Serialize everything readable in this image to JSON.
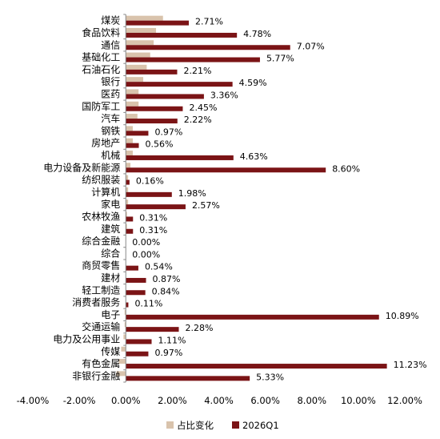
{
  "chart_data": {
    "type": "bar",
    "orientation": "horizontal",
    "categories": [
      "煤炭",
      "食品饮料",
      "通信",
      "基础化工",
      "石油石化",
      "银行",
      "医药",
      "国防军工",
      "汽车",
      "钢铁",
      "房地产",
      "机械",
      "电力设备及新能源",
      "纺织服装",
      "计算机",
      "家电",
      "农林牧渔",
      "建筑",
      "综合金融",
      "综合",
      "商贸零售",
      "建材",
      "轻工制造",
      "消费者服务",
      "电子",
      "交通运输",
      "电力及公用事业",
      "传媒",
      "有色金属",
      "非银行金融"
    ],
    "series": [
      {
        "name": "占比变化",
        "color": "#d9c3ac",
        "values": [
          1.6,
          1.3,
          1.2,
          1.05,
          0.9,
          0.75,
          0.55,
          0.55,
          0.5,
          0.3,
          0.3,
          0.3,
          0.2,
          0.1,
          0.1,
          0.1,
          0.05,
          0.05,
          0.0,
          0.0,
          0.0,
          0.0,
          0.0,
          0.0,
          -0.05,
          -0.05,
          -0.1,
          -0.2,
          -0.3,
          -0.4
        ]
      },
      {
        "name": "2026Q1",
        "color": "#7b1416",
        "values": [
          2.71,
          4.78,
          7.07,
          5.77,
          2.21,
          4.59,
          3.36,
          2.45,
          2.22,
          0.97,
          0.56,
          4.63,
          8.6,
          0.16,
          1.98,
          2.57,
          0.31,
          0.31,
          0.0,
          0.0,
          0.54,
          0.87,
          0.84,
          0.11,
          10.89,
          2.28,
          1.11,
          0.97,
          11.23,
          5.33
        ]
      }
    ],
    "data_labels": [
      "2.71%",
      "4.78%",
      "7.07%",
      "5.77%",
      "2.21%",
      "4.59%",
      "3.36%",
      "2.45%",
      "2.22%",
      "0.97%",
      "0.56%",
      "4.63%",
      "8.60%",
      "0.16%",
      "1.98%",
      "2.57%",
      "0.31%",
      "0.31%",
      "0.00%",
      "0.00%",
      "0.54%",
      "0.87%",
      "0.84%",
      "0.11%",
      "10.89%",
      "2.28%",
      "1.11%",
      "0.97%",
      "11.23%",
      "5.33%"
    ],
    "xlim": [
      -4,
      12
    ],
    "xticks": [
      "-4.00%",
      "-2.00%",
      "0.00%",
      "2.00%",
      "4.00%",
      "6.00%",
      "8.00%",
      "10.00%",
      "12.00%"
    ],
    "xtick_values": [
      -4,
      -2,
      0,
      2,
      4,
      6,
      8,
      10,
      12
    ],
    "grid": false,
    "legend_position": "bottom"
  }
}
